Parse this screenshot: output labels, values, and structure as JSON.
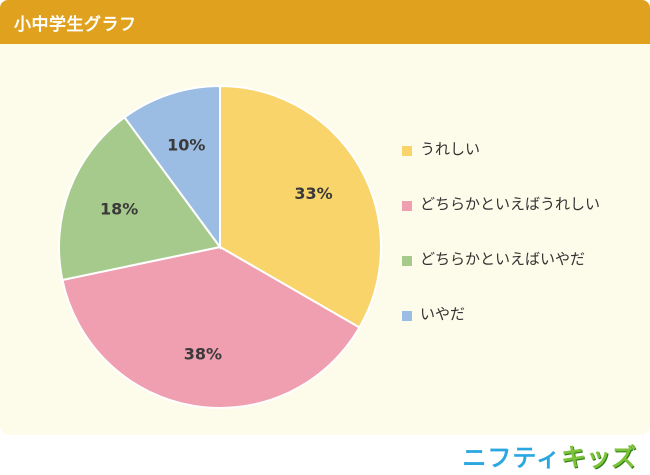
{
  "header": {
    "title": "小中学生グラフ"
  },
  "chart_data": {
    "type": "pie",
    "categories": [
      "うれしい",
      "どちらかといえばうれしい",
      "どちらかといえばいやだ",
      "いやだ"
    ],
    "values": [
      33,
      38,
      18,
      10
    ],
    "data_labels": [
      "33%",
      "38%",
      "18%",
      "10%"
    ],
    "colors": [
      "#f8d46b",
      "#ef9fb0",
      "#a6ca8b",
      "#9bbde3"
    ],
    "start_angle_deg": 0,
    "direction": "clockwise",
    "legend_position": "right"
  },
  "logo": {
    "part1": "ニフティ",
    "part2": "キッズ"
  }
}
